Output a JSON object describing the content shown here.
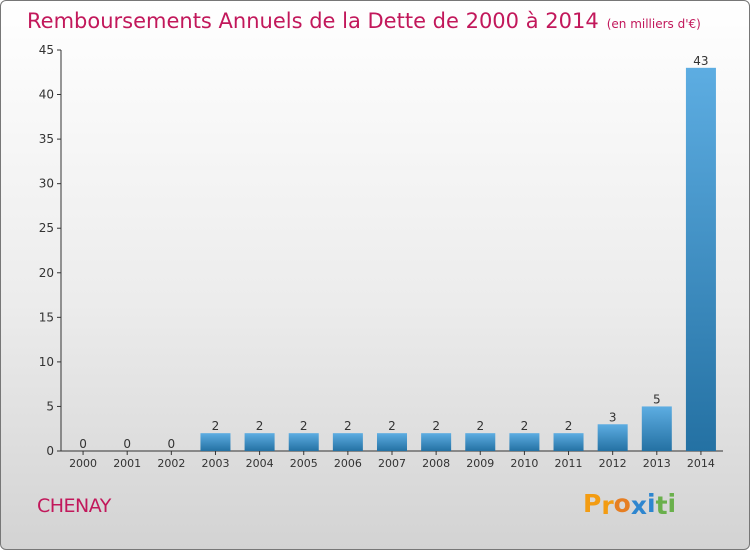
{
  "chart_data": {
    "type": "bar",
    "title": "Remboursements Annuels de la Dette de 2000 à 2014",
    "unit_note": "(en milliers d'€)",
    "categories": [
      "2000",
      "2001",
      "2002",
      "2003",
      "2004",
      "2005",
      "2006",
      "2007",
      "2008",
      "2009",
      "2010",
      "2011",
      "2012",
      "2013",
      "2014"
    ],
    "values": [
      0,
      0,
      0,
      2,
      2,
      2,
      2,
      2,
      2,
      2,
      2,
      2,
      3,
      5,
      43
    ],
    "data_labels": [
      "0",
      "0",
      "0",
      "2",
      "2",
      "2",
      "2",
      "2",
      "2",
      "2",
      "2",
      "2",
      "3",
      "5",
      "43"
    ],
    "y_ticks": [
      "0",
      "5",
      "10",
      "15",
      "20",
      "25",
      "30",
      "35",
      "40",
      "45"
    ],
    "ylim": [
      0,
      45
    ],
    "grid": false,
    "bar_color": "#2e86cf"
  },
  "footer": {
    "town": "CHENAY",
    "logo_letters": [
      "P",
      "r",
      "o",
      "x",
      "i",
      "t",
      "i"
    ],
    "logo_colors": [
      "#f39c12",
      "#f39c12",
      "#e67e22",
      "#2e86cf",
      "#2e86cf",
      "#6ab04c",
      "#6ab04c"
    ]
  }
}
